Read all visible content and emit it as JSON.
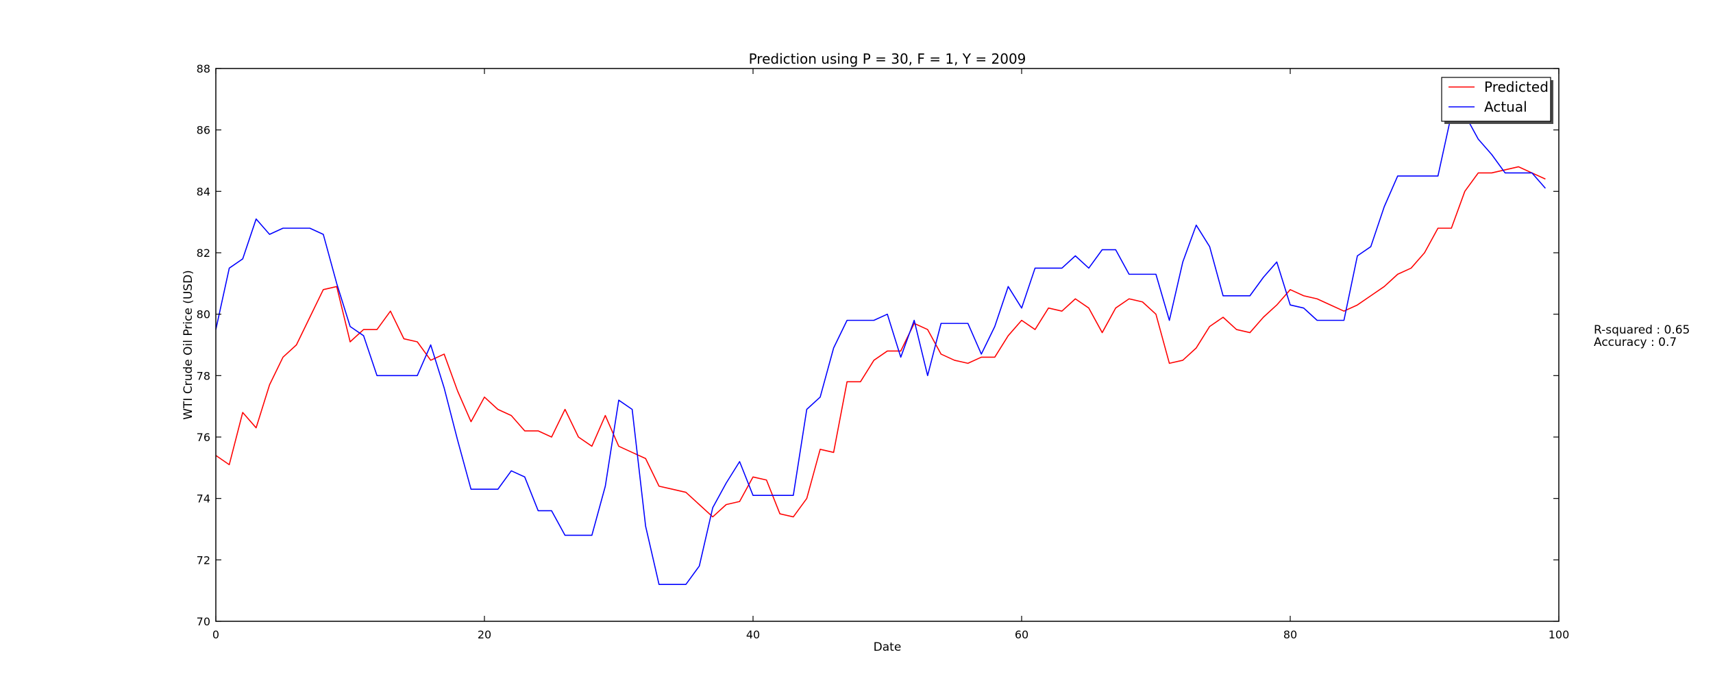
{
  "chart_data": {
    "type": "line",
    "title": "Prediction using P = 30, F = 1, Y = 2009",
    "xlabel": "Date",
    "ylabel": "WTI Crude Oil Price (USD)",
    "xlim": [
      0,
      100
    ],
    "ylim": [
      70,
      88
    ],
    "xticks": [
      0,
      20,
      40,
      60,
      80,
      100
    ],
    "yticks": [
      70,
      72,
      74,
      76,
      78,
      80,
      82,
      84,
      86,
      88
    ],
    "grid": false,
    "legend_position": "top-right",
    "colors": {
      "Predicted": "#ff0000",
      "Actual": "#0000ff"
    },
    "series": [
      {
        "name": "Predicted",
        "x": [
          0,
          1,
          2,
          3,
          4,
          5,
          6,
          7,
          8,
          9,
          10,
          11,
          12,
          13,
          14,
          15,
          16,
          17,
          18,
          19,
          20,
          21,
          22,
          23,
          24,
          25,
          26,
          27,
          28,
          29,
          30,
          31,
          32,
          33,
          34,
          35,
          36,
          37,
          38,
          39,
          40,
          41,
          42,
          43,
          44,
          45,
          46,
          47,
          48,
          49,
          50,
          51,
          52,
          53,
          54,
          55,
          56,
          57,
          58,
          59,
          60,
          61,
          62,
          63,
          64,
          65,
          66,
          67,
          68,
          69,
          70,
          71,
          72,
          73,
          74,
          75,
          76,
          77,
          78,
          79,
          80,
          81,
          82,
          83,
          84,
          85,
          86,
          87,
          88,
          89,
          90,
          91,
          92,
          93,
          94,
          95,
          96,
          97,
          98,
          99
        ],
        "values": [
          75.4,
          75.1,
          76.8,
          76.3,
          77.7,
          78.6,
          79.0,
          79.9,
          80.8,
          80.9,
          79.1,
          79.5,
          79.5,
          80.1,
          79.2,
          79.1,
          78.5,
          78.7,
          77.5,
          76.5,
          77.3,
          76.9,
          76.7,
          76.2,
          76.2,
          76.0,
          76.9,
          76.0,
          75.7,
          76.7,
          75.7,
          75.5,
          75.3,
          74.4,
          74.3,
          74.2,
          73.8,
          73.4,
          73.8,
          73.9,
          74.7,
          74.6,
          73.5,
          73.4,
          74.0,
          75.6,
          75.5,
          77.8,
          77.8,
          78.5,
          78.8,
          78.8,
          79.7,
          79.5,
          78.7,
          78.5,
          78.4,
          78.6,
          78.6,
          79.3,
          79.8,
          79.5,
          80.2,
          80.1,
          80.5,
          80.2,
          79.4,
          80.2,
          80.5,
          80.4,
          80.0,
          78.4,
          78.5,
          78.9,
          79.6,
          79.9,
          79.5,
          79.4,
          79.9,
          80.3,
          80.8,
          80.6,
          80.5,
          80.3,
          80.1,
          80.3,
          80.6,
          80.9,
          81.3,
          81.5,
          82.0,
          82.8,
          82.8,
          84.0,
          84.6,
          84.6,
          84.7,
          84.8,
          84.6,
          84.4
        ]
      },
      {
        "name": "Actual",
        "x": [
          0,
          1,
          2,
          3,
          4,
          5,
          6,
          7,
          8,
          9,
          10,
          11,
          12,
          13,
          14,
          15,
          16,
          17,
          18,
          19,
          20,
          21,
          22,
          23,
          24,
          25,
          26,
          27,
          28,
          29,
          30,
          31,
          32,
          33,
          34,
          35,
          36,
          37,
          38,
          39,
          40,
          41,
          42,
          43,
          44,
          45,
          46,
          47,
          48,
          49,
          50,
          51,
          52,
          53,
          54,
          55,
          56,
          57,
          58,
          59,
          60,
          61,
          62,
          63,
          64,
          65,
          66,
          67,
          68,
          69,
          70,
          71,
          72,
          73,
          74,
          75,
          76,
          77,
          78,
          79,
          80,
          81,
          82,
          83,
          84,
          85,
          86,
          87,
          88,
          89,
          90,
          91,
          92,
          93,
          94,
          95,
          96,
          97,
          98,
          99
        ],
        "values": [
          79.5,
          81.5,
          81.8,
          83.1,
          82.6,
          82.8,
          82.8,
          82.8,
          82.6,
          81.0,
          79.6,
          79.3,
          78.0,
          78.0,
          78.0,
          78.0,
          79.0,
          77.6,
          75.9,
          74.3,
          74.3,
          74.3,
          74.9,
          74.7,
          73.6,
          73.6,
          72.8,
          72.8,
          72.8,
          74.4,
          77.2,
          76.9,
          73.1,
          71.2,
          71.2,
          71.2,
          71.8,
          73.7,
          74.5,
          75.2,
          74.1,
          74.1,
          74.1,
          74.1,
          76.9,
          77.3,
          78.9,
          79.8,
          79.8,
          79.8,
          80.0,
          78.6,
          79.8,
          78.0,
          79.7,
          79.7,
          79.7,
          78.7,
          79.6,
          80.9,
          80.2,
          81.5,
          81.5,
          81.5,
          81.9,
          81.5,
          82.1,
          82.1,
          81.3,
          81.3,
          81.3,
          79.8,
          81.7,
          82.9,
          82.2,
          80.6,
          80.6,
          80.6,
          81.2,
          81.7,
          80.3,
          80.2,
          79.8,
          79.8,
          79.8,
          81.9,
          82.2,
          83.5,
          84.5,
          84.5,
          84.5,
          84.5,
          86.5,
          86.5,
          85.7,
          85.2,
          84.6,
          84.6,
          84.6,
          84.1
        ]
      }
    ],
    "annotations": [
      "R-squared : 0.65",
      "Accuracy : 0.7"
    ]
  }
}
